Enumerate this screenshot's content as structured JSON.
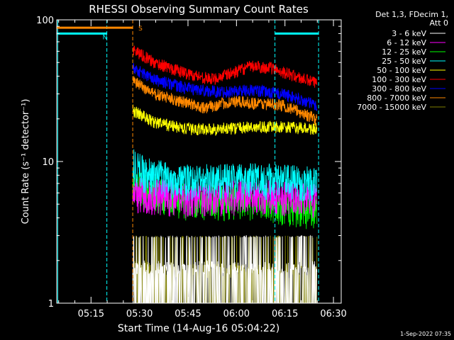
{
  "chart_data": {
    "type": "line",
    "title": "RHESSI Observing Summary Count Rates",
    "xlabel": "Start Time (14-Aug-16 05:04:22)",
    "ylabel": "Count Rate (s⁻¹ detector⁻¹)",
    "yscale": "log",
    "ylim": [
      1,
      100
    ],
    "xlim_minutes": [
      0,
      88
    ],
    "x_ticks": [
      {
        "minute": 10.6,
        "label": "05:15"
      },
      {
        "minute": 25.6,
        "label": "05:30"
      },
      {
        "minute": 40.6,
        "label": "05:45"
      },
      {
        "minute": 55.6,
        "label": "06:00"
      },
      {
        "minute": 70.6,
        "label": "06:15"
      },
      {
        "minute": 85.6,
        "label": "06:30"
      }
    ],
    "y_tick_labels": [
      "1",
      "10",
      "100"
    ],
    "legend_header": [
      "Det 1,3, FDecim 1,",
      "Att 0"
    ],
    "legend_position": "right",
    "series": [
      {
        "name": "3 - 6 keV",
        "color": "#ffffff",
        "style": "spiky",
        "base": [
          [
            23.5,
            1.6
          ],
          [
            80,
            1.6
          ]
        ]
      },
      {
        "name": "6 - 12 keV",
        "color": "#ff00ff",
        "style": "band",
        "base": [
          [
            23.5,
            6.0
          ],
          [
            40,
            5.5
          ],
          [
            60,
            5.8
          ],
          [
            80,
            5.5
          ]
        ]
      },
      {
        "name": "12 - 25 keV",
        "color": "#00ff00",
        "style": "band",
        "base": [
          [
            23.5,
            6.5
          ],
          [
            40,
            5.3
          ],
          [
            60,
            5.3
          ],
          [
            80,
            4.5
          ]
        ]
      },
      {
        "name": "25 - 50 keV",
        "color": "#00ffff",
        "style": "band",
        "base": [
          [
            23.5,
            9.5
          ],
          [
            28,
            8.0
          ],
          [
            40,
            7.2
          ],
          [
            60,
            7.5
          ],
          [
            80,
            7.0
          ]
        ]
      },
      {
        "name": "50 - 100 keV",
        "color": "#ffff00",
        "style": "line",
        "base": [
          [
            23.5,
            23
          ],
          [
            30,
            19
          ],
          [
            40,
            17
          ],
          [
            50,
            17
          ],
          [
            60,
            17.5
          ],
          [
            70,
            17.5
          ],
          [
            80,
            17
          ]
        ]
      },
      {
        "name": "100 - 300 keV",
        "color": "#ff0000",
        "style": "line",
        "base": [
          [
            23.5,
            62
          ],
          [
            30,
            50
          ],
          [
            40,
            42
          ],
          [
            48,
            38
          ],
          [
            54,
            42
          ],
          [
            60,
            47
          ],
          [
            66,
            46
          ],
          [
            70,
            43
          ],
          [
            75,
            39
          ],
          [
            80,
            36
          ]
        ]
      },
      {
        "name": "300 - 800 keV",
        "color": "#0000ff",
        "style": "line",
        "base": [
          [
            23.5,
            46
          ],
          [
            30,
            38
          ],
          [
            40,
            33
          ],
          [
            50,
            31
          ],
          [
            60,
            32
          ],
          [
            70,
            30
          ],
          [
            80,
            25
          ]
        ]
      },
      {
        "name": "800 - 7000 keV",
        "color": "#ff8800",
        "style": "line",
        "base": [
          [
            23.5,
            37
          ],
          [
            30,
            30
          ],
          [
            40,
            26
          ],
          [
            46,
            24
          ],
          [
            54,
            26.5
          ],
          [
            60,
            26
          ],
          [
            70,
            25
          ],
          [
            80,
            20
          ]
        ]
      },
      {
        "name": "7000 - 15000 keV",
        "color": "#808000",
        "style": "spiky",
        "base": [
          [
            23.5,
            1.6
          ],
          [
            40,
            1.5
          ],
          [
            80,
            1.5
          ]
        ]
      }
    ],
    "annotations": [
      {
        "label": "N",
        "color": "#00ffff",
        "intervals": [
          [
            0,
            15.5
          ],
          [
            67.5,
            81
          ]
        ],
        "level": 80
      },
      {
        "label": "S",
        "color": "#ff8800",
        "intervals": [
          [
            0,
            23.5
          ]
        ],
        "level": 88
      }
    ],
    "vertical_markers": [
      {
        "minute": 0.3,
        "color": "#00ffff"
      },
      {
        "minute": 15.5,
        "color": "#00ffff"
      },
      {
        "minute": 23.5,
        "color": "#ff8800"
      },
      {
        "minute": 67.5,
        "color": "#00ffff"
      },
      {
        "minute": 81.0,
        "color": "#00ffff"
      }
    ]
  },
  "footer": {
    "timestamp": "1-Sep-2022 07:35"
  }
}
